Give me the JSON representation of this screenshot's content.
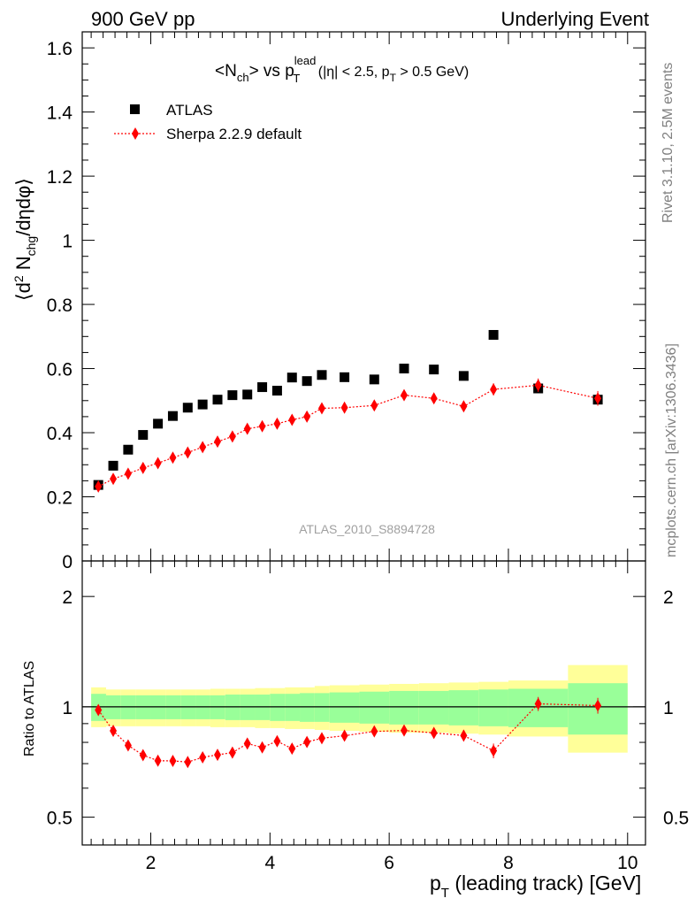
{
  "header": {
    "left": "900 GeV pp",
    "right": "Underlying Event"
  },
  "side": {
    "rivet": "Rivet 3.1.10,  2.5M events",
    "mcplots": "mcplots.cern.ch [arXiv:1306.3436]"
  },
  "chart_data": {
    "type": "scatter",
    "title_parts": {
      "a": "<N",
      "a_sub": "ch",
      "b": "> vs p",
      "b_sup": "lead",
      "b_sub": "T",
      "c": " (|η| < 2.5, p",
      "c_sub": "T",
      "d": " > 0.5 GeV)"
    },
    "watermark": "ATLAS_2010_S8894728",
    "ylabel_parts": {
      "a": "⟨d",
      "a_sup": "2",
      "b": " N",
      "b_sub": "chg",
      "c": "/dηdφ⟩"
    },
    "xlabel_parts": {
      "a": "p",
      "a_sub": "T",
      "b": " (leading track) [GeV]"
    },
    "ratio_ylabel": "Ratio to ATLAS",
    "xlim": [
      0.85,
      10.3
    ],
    "ylim": [
      0,
      1.65
    ],
    "ratio_ylim": [
      0.42,
      2.5
    ],
    "ratio_scale": "log",
    "x_ticks": [
      "2",
      "4",
      "6",
      "8",
      "10"
    ],
    "y_ticks": [
      "0",
      "0.2",
      "0.4",
      "0.6",
      "0.8",
      "1",
      "1.2",
      "1.4",
      "1.6"
    ],
    "ratio_ticks": [
      "0.5",
      "1",
      "2"
    ],
    "legend_position": "top-left",
    "atlas_bins": [
      [
        1.0,
        1.25
      ],
      [
        1.25,
        1.5
      ],
      [
        1.5,
        1.75
      ],
      [
        1.75,
        2.0
      ],
      [
        2.0,
        2.25
      ],
      [
        2.25,
        2.5
      ],
      [
        2.5,
        2.75
      ],
      [
        2.75,
        3.0
      ],
      [
        3.0,
        3.25
      ],
      [
        3.25,
        3.5
      ],
      [
        3.5,
        3.75
      ],
      [
        3.75,
        4.0
      ],
      [
        4.0,
        4.25
      ],
      [
        4.25,
        4.5
      ],
      [
        4.5,
        4.75
      ],
      [
        4.75,
        5.0
      ],
      [
        5.0,
        5.5
      ],
      [
        5.5,
        6.0
      ],
      [
        6.0,
        6.5
      ],
      [
        6.5,
        7.0
      ],
      [
        7.0,
        7.5
      ],
      [
        7.5,
        8.0
      ],
      [
        8.0,
        9.0
      ],
      [
        9.0,
        10.0
      ]
    ],
    "series": [
      {
        "name": "ATLAS",
        "color": "#000000",
        "marker": "square",
        "x": [
          1.12,
          1.37,
          1.62,
          1.87,
          2.12,
          2.37,
          2.62,
          2.87,
          3.12,
          3.37,
          3.62,
          3.87,
          4.12,
          4.37,
          4.62,
          4.87,
          5.25,
          5.75,
          6.25,
          6.75,
          7.25,
          7.75,
          8.5,
          9.5
        ],
        "y": [
          0.237,
          0.297,
          0.347,
          0.393,
          0.428,
          0.452,
          0.478,
          0.488,
          0.503,
          0.517,
          0.519,
          0.542,
          0.531,
          0.572,
          0.561,
          0.58,
          0.573,
          0.566,
          0.6,
          0.597,
          0.577,
          0.705,
          0.538,
          0.503
        ]
      },
      {
        "name": "Sherpa 2.2.9 default",
        "color": "#ff0000",
        "marker": "diamond",
        "x": [
          1.12,
          1.37,
          1.62,
          1.87,
          2.12,
          2.37,
          2.62,
          2.87,
          3.12,
          3.37,
          3.62,
          3.87,
          4.12,
          4.37,
          4.62,
          4.87,
          5.25,
          5.75,
          6.25,
          6.75,
          7.25,
          7.75,
          8.5,
          9.5
        ],
        "y": [
          0.232,
          0.256,
          0.272,
          0.29,
          0.305,
          0.322,
          0.338,
          0.355,
          0.372,
          0.388,
          0.412,
          0.42,
          0.428,
          0.44,
          0.45,
          0.476,
          0.478,
          0.485,
          0.517,
          0.507,
          0.482,
          0.535,
          0.548,
          0.507
        ],
        "yerr": [
          0.005,
          0.005,
          0.005,
          0.005,
          0.005,
          0.005,
          0.006,
          0.006,
          0.006,
          0.006,
          0.007,
          0.007,
          0.007,
          0.008,
          0.008,
          0.009,
          0.009,
          0.01,
          0.012,
          0.013,
          0.016,
          0.019,
          0.021,
          0.023
        ],
        "ratio": [
          0.98,
          0.86,
          0.785,
          0.738,
          0.713,
          0.712,
          0.707,
          0.728,
          0.74,
          0.75,
          0.794,
          0.775,
          0.806,
          0.769,
          0.802,
          0.821,
          0.834,
          0.857,
          0.862,
          0.849,
          0.835,
          0.759,
          1.019,
          1.008
        ],
        "ratio_err": [
          0.02,
          0.015,
          0.014,
          0.013,
          0.012,
          0.012,
          0.012,
          0.012,
          0.013,
          0.013,
          0.014,
          0.015,
          0.015,
          0.016,
          0.016,
          0.017,
          0.017,
          0.02,
          0.022,
          0.024,
          0.03,
          0.035,
          0.045,
          0.05
        ]
      }
    ],
    "band_inner": [
      [
        0.915,
        1.085
      ],
      [
        0.925,
        1.075
      ],
      [
        0.925,
        1.075
      ],
      [
        0.925,
        1.075
      ],
      [
        0.925,
        1.075
      ],
      [
        0.925,
        1.075
      ],
      [
        0.925,
        1.075
      ],
      [
        0.925,
        1.075
      ],
      [
        0.925,
        1.075
      ],
      [
        0.92,
        1.08
      ],
      [
        0.92,
        1.08
      ],
      [
        0.92,
        1.08
      ],
      [
        0.915,
        1.085
      ],
      [
        0.915,
        1.085
      ],
      [
        0.91,
        1.09
      ],
      [
        0.91,
        1.09
      ],
      [
        0.905,
        1.095
      ],
      [
        0.9,
        1.1
      ],
      [
        0.895,
        1.105
      ],
      [
        0.895,
        1.105
      ],
      [
        0.89,
        1.11
      ],
      [
        0.885,
        1.115
      ],
      [
        0.88,
        1.12
      ],
      [
        0.84,
        1.16
      ]
    ],
    "band_outer": [
      [
        0.88,
        1.13
      ],
      [
        0.885,
        1.115
      ],
      [
        0.885,
        1.115
      ],
      [
        0.885,
        1.115
      ],
      [
        0.885,
        1.115
      ],
      [
        0.885,
        1.115
      ],
      [
        0.885,
        1.115
      ],
      [
        0.885,
        1.115
      ],
      [
        0.88,
        1.12
      ],
      [
        0.88,
        1.12
      ],
      [
        0.88,
        1.12
      ],
      [
        0.875,
        1.125
      ],
      [
        0.875,
        1.125
      ],
      [
        0.87,
        1.13
      ],
      [
        0.87,
        1.13
      ],
      [
        0.865,
        1.14
      ],
      [
        0.86,
        1.145
      ],
      [
        0.855,
        1.15
      ],
      [
        0.85,
        1.155
      ],
      [
        0.85,
        1.16
      ],
      [
        0.845,
        1.165
      ],
      [
        0.84,
        1.17
      ],
      [
        0.83,
        1.18
      ],
      [
        0.75,
        1.3
      ]
    ],
    "band_colors": {
      "inner": "#99ff99",
      "outer": "#ffff99"
    }
  }
}
